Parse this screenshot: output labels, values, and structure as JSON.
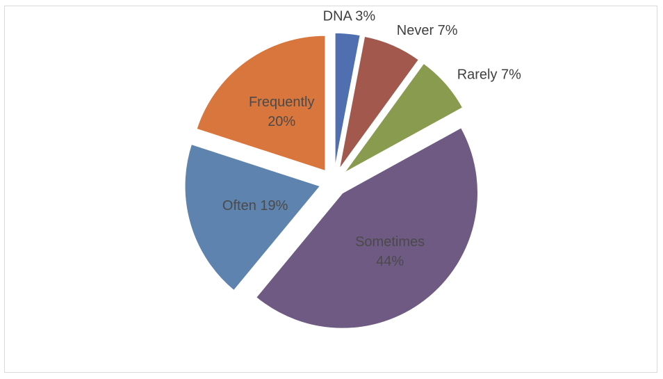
{
  "chart_data": {
    "type": "pie",
    "title": "",
    "slices": [
      {
        "label": "DNA",
        "value_label": "3%",
        "value": 3,
        "color": "#4f6fb0",
        "label_position": "outside"
      },
      {
        "label": "Never",
        "value_label": "7%",
        "value": 7,
        "color": "#a2584d",
        "label_position": "outside"
      },
      {
        "label": "Rarely",
        "value_label": "7%",
        "value": 7,
        "color": "#889b4e",
        "label_position": "outside"
      },
      {
        "label": "Sometimes",
        "value_label": "44%",
        "value": 44,
        "color": "#6e5a82",
        "label_position": "inside"
      },
      {
        "label": "Often",
        "value_label": "19%",
        "value": 19,
        "color": "#5d83ae",
        "label_position": "inside"
      },
      {
        "label": "Frequently",
        "value_label": "20%",
        "value": 20,
        "color": "#d9763d",
        "label_position": "inside"
      }
    ],
    "exploded": true,
    "start_angle_deg": 0,
    "direction": "clockwise"
  }
}
